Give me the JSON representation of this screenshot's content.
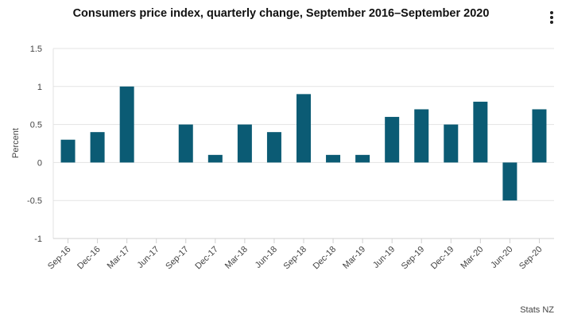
{
  "header": {
    "menu_icon": "more-vertical-icon"
  },
  "chart_data": {
    "type": "bar",
    "title": "Consumers price index, quarterly change, September 2016–September 2020",
    "xlabel": "",
    "ylabel": "Percent",
    "ylim": [
      -1,
      1.5
    ],
    "yticks": [
      "1.5",
      "1",
      "0.5",
      "0",
      "-0.5",
      "-1"
    ],
    "ytick_values": [
      1.5,
      1,
      0.5,
      0,
      -0.5,
      -1
    ],
    "grid": true,
    "bar_color": "#0b5b74",
    "categories": [
      "Sep-16",
      "Dec-16",
      "Mar-17",
      "Jun-17",
      "Sep-17",
      "Dec-17",
      "Mar-18",
      "Jun-18",
      "Sep-18",
      "Dec-18",
      "Mar-19",
      "Jun-19",
      "Sep-19",
      "Dec-19",
      "Mar-20",
      "Jun-20",
      "Sep-20"
    ],
    "values": [
      0.3,
      0.4,
      1.0,
      0.0,
      0.5,
      0.1,
      0.5,
      0.4,
      0.9,
      0.1,
      0.1,
      0.6,
      0.7,
      0.5,
      0.8,
      -0.5,
      0.7
    ],
    "source": "Stats NZ"
  }
}
